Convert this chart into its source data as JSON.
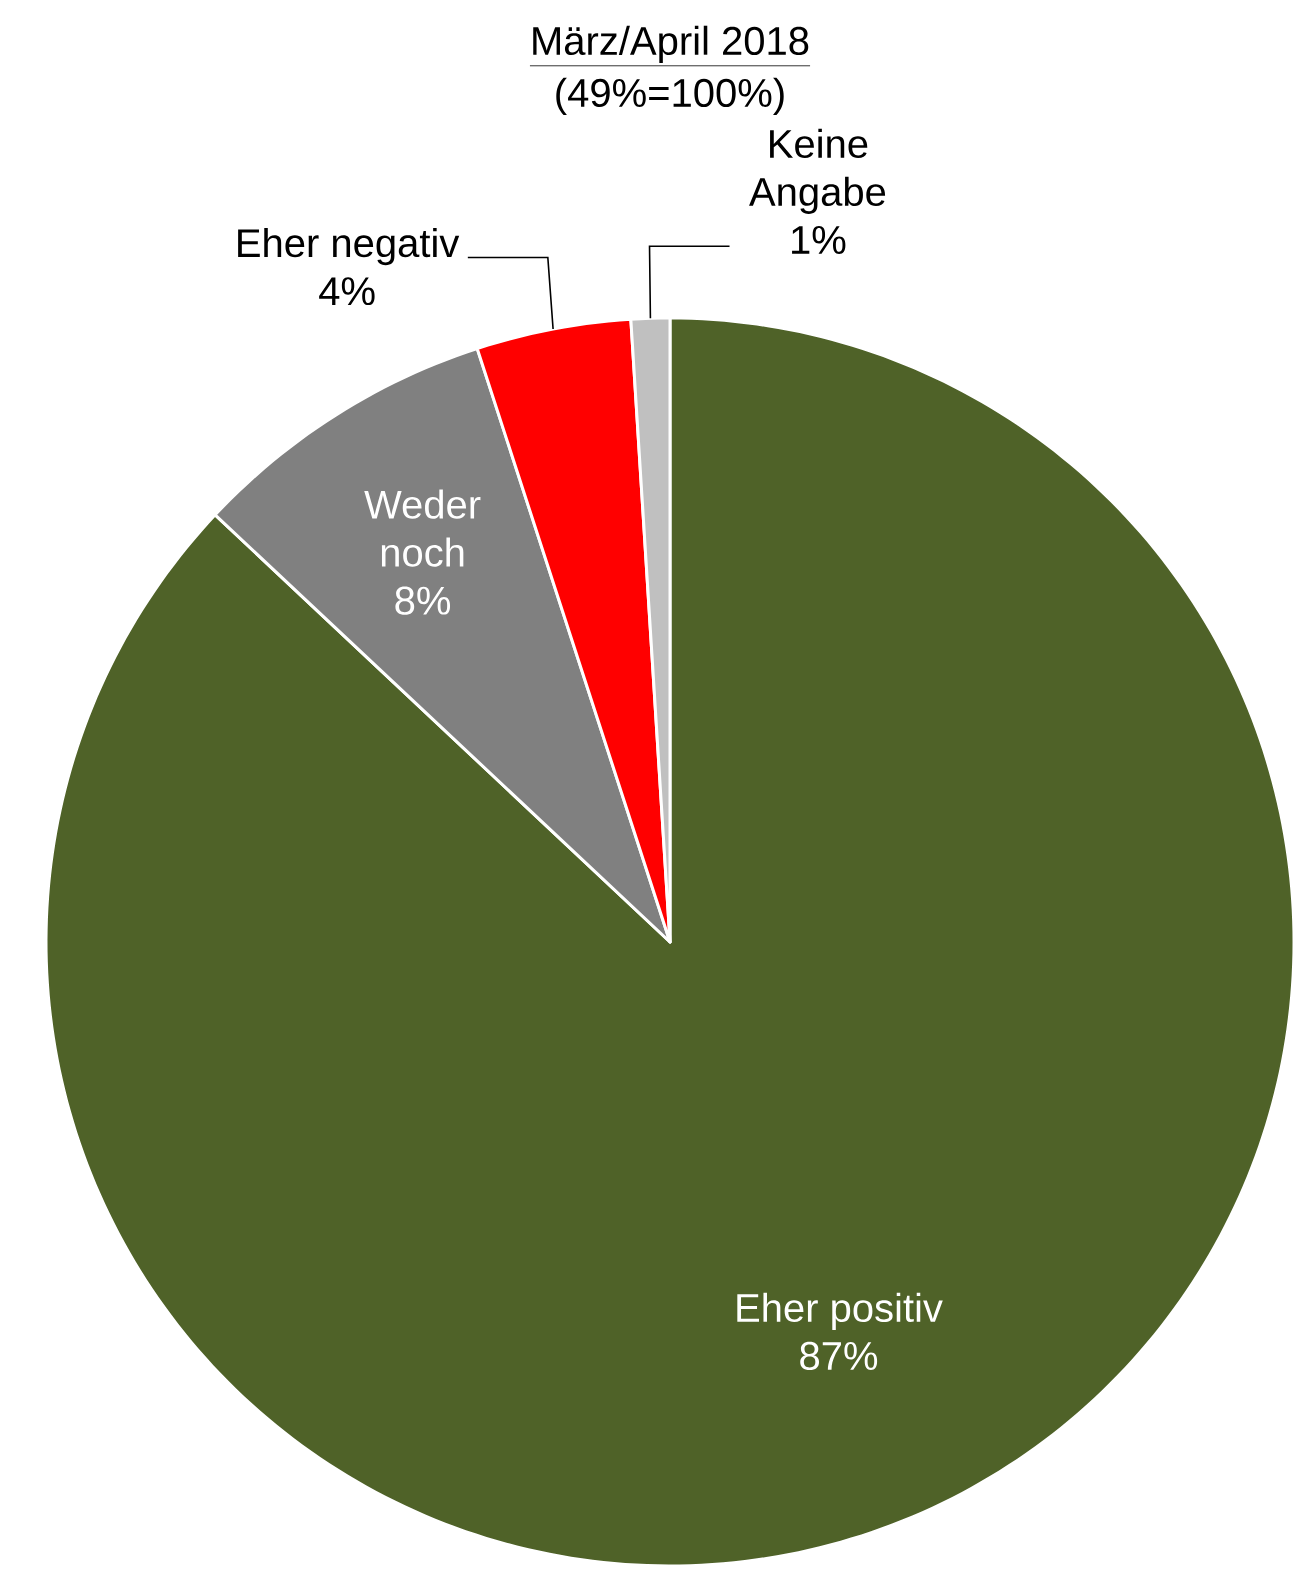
{
  "chart_data": {
    "type": "pie",
    "title": "März/April 2018",
    "subtitle": "(49%=100%)",
    "categories": [
      "Eher positiv",
      "Weder noch",
      "Eher negativ",
      "Keine Angabe"
    ],
    "values": [
      87,
      8,
      4,
      1
    ],
    "value_labels": [
      "87%",
      "8%",
      "4%",
      "1%"
    ],
    "colors": [
      "#4f6228",
      "#808080",
      "#ff0000",
      "#c0c0c0"
    ]
  }
}
